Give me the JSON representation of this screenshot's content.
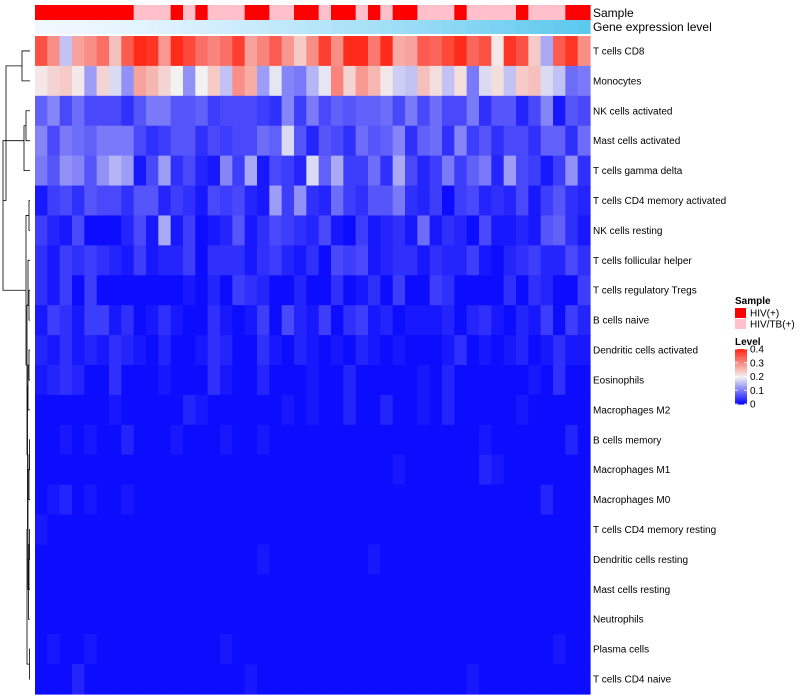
{
  "chart_data": {
    "type": "heatmap",
    "annotation_labels": [
      "Sample",
      "Gene expression level"
    ],
    "sample_groups": [
      "HIV(+)",
      "HIV(+)",
      "HIV(+)",
      "HIV(+)",
      "HIV(+)",
      "HIV(+)",
      "HIV(+)",
      "HIV(+)",
      "HIV/TB(+)",
      "HIV/TB(+)",
      "HIV/TB(+)",
      "HIV(+)",
      "HIV/TB(+)",
      "HIV(+)",
      "HIV/TB(+)",
      "HIV/TB(+)",
      "HIV/TB(+)",
      "HIV(+)",
      "HIV(+)",
      "HIV/TB(+)",
      "HIV/TB(+)",
      "HIV(+)",
      "HIV(+)",
      "HIV/TB(+)",
      "HIV(+)",
      "HIV(+)",
      "HIV/TB(+)",
      "HIV(+)",
      "HIV/TB(+)",
      "HIV(+)",
      "HIV(+)",
      "HIV/TB(+)",
      "HIV/TB(+)",
      "HIV/TB(+)",
      "HIV(+)",
      "HIV/TB(+)",
      "HIV/TB(+)",
      "HIV/TB(+)",
      "HIV/TB(+)",
      "HIV(+)",
      "HIV/TB(+)",
      "HIV/TB(+)",
      "HIV/TB(+)",
      "HIV(+)",
      "HIV(+)"
    ],
    "rows": [
      {
        "name": "T cells CD8",
        "values": [
          0.36,
          0.3,
          0.16,
          0.28,
          0.3,
          0.33,
          0.25,
          0.35,
          0.4,
          0.39,
          0.29,
          0.41,
          0.37,
          0.33,
          0.31,
          0.33,
          0.38,
          0.28,
          0.31,
          0.35,
          0.29,
          0.24,
          0.3,
          0.38,
          0.3,
          0.42,
          0.4,
          0.32,
          0.41,
          0.27,
          0.28,
          0.35,
          0.34,
          0.37,
          0.42,
          0.34,
          0.36,
          0.21,
          0.39,
          0.36,
          0.24,
          0.14,
          0.35,
          0.39,
          0.3
        ]
      },
      {
        "name": "Monocytes",
        "values": [
          0.21,
          0.23,
          0.24,
          0.21,
          0.13,
          0.23,
          0.18,
          0.12,
          0.28,
          0.26,
          0.23,
          0.2,
          0.12,
          0.2,
          0.24,
          0.16,
          0.3,
          0.27,
          0.13,
          0.19,
          0.11,
          0.1,
          0.15,
          0.19,
          0.31,
          0.23,
          0.29,
          0.26,
          0.21,
          0.17,
          0.16,
          0.25,
          0.22,
          0.16,
          0.22,
          0.1,
          0.18,
          0.22,
          0.16,
          0.24,
          0.25,
          0.18,
          0.16,
          0.09,
          0.1
        ]
      },
      {
        "name": "NK cells activated",
        "values": [
          0.08,
          0.11,
          0.06,
          0.09,
          0.06,
          0.06,
          0.06,
          0.04,
          0.07,
          0.1,
          0.1,
          0.07,
          0.07,
          0.08,
          0.05,
          0.06,
          0.06,
          0.06,
          0.05,
          0.04,
          0.11,
          0.05,
          0.1,
          0.06,
          0.08,
          0.07,
          0.08,
          0.08,
          0.09,
          0.06,
          0.1,
          0.06,
          0.09,
          0.06,
          0.06,
          0.1,
          0.04,
          0.07,
          0.07,
          0.03,
          0.06,
          0.11,
          0.02,
          0.07,
          0.06
        ]
      },
      {
        "name": "Mast cells activated",
        "values": [
          0.11,
          0.06,
          0.1,
          0.09,
          0.08,
          0.1,
          0.1,
          0.1,
          0.06,
          0.04,
          0.05,
          0.07,
          0.07,
          0.04,
          0.06,
          0.05,
          0.06,
          0.06,
          0.09,
          0.08,
          0.18,
          0.07,
          0.03,
          0.07,
          0.06,
          0.04,
          0.09,
          0.07,
          0.08,
          0.11,
          0.04,
          0.08,
          0.09,
          0.04,
          0.11,
          0.05,
          0.07,
          0.04,
          0.06,
          0.06,
          0.04,
          0.08,
          0.08,
          0.04,
          0.09
        ]
      },
      {
        "name": "T cells gamma delta",
        "values": [
          0.1,
          0.07,
          0.12,
          0.11,
          0.07,
          0.12,
          0.15,
          0.13,
          0.02,
          0.06,
          0.13,
          0.04,
          0.06,
          0.03,
          0.02,
          0.11,
          0.05,
          0.14,
          0.02,
          0.06,
          0.05,
          0.03,
          0.18,
          0.08,
          0.14,
          0.05,
          0.05,
          0.09,
          0.04,
          0.14,
          0.06,
          0.03,
          0.05,
          0.1,
          0.05,
          0.08,
          0.1,
          0.03,
          0.13,
          0.06,
          0.05,
          0.02,
          0.05,
          0.12,
          0.04
        ]
      },
      {
        "name": "T cells CD4 memory activated",
        "values": [
          0.02,
          0.05,
          0.06,
          0.04,
          0.07,
          0.06,
          0.06,
          0.04,
          0.07,
          0.07,
          0.03,
          0.05,
          0.04,
          0.02,
          0.06,
          0.05,
          0.06,
          0.03,
          0.02,
          0.13,
          0.05,
          0.12,
          0.04,
          0.03,
          0.09,
          0.05,
          0.04,
          0.07,
          0.07,
          0.1,
          0.04,
          0.03,
          0.05,
          0.01,
          0.05,
          0.06,
          0.03,
          0.04,
          0.03,
          0.06,
          0.02,
          0.05,
          0.07,
          0.04,
          0.03
        ]
      },
      {
        "name": "NK cells resting",
        "values": [
          0.05,
          0.03,
          0.02,
          0.06,
          0.01,
          0.01,
          0.01,
          0.03,
          0.06,
          0.02,
          0.14,
          0.02,
          0.05,
          0.01,
          0.02,
          0.03,
          0.07,
          0.02,
          0.04,
          0.06,
          0.05,
          0.04,
          0.03,
          0.06,
          0.02,
          0.01,
          0.05,
          0.02,
          0.03,
          0.04,
          0.02,
          0.09,
          0.02,
          0.04,
          0.03,
          0.01,
          0.06,
          0.02,
          0.02,
          0.03,
          0.02,
          0.07,
          0.08,
          0.04,
          0.02
        ]
      },
      {
        "name": "T cells follicular helper",
        "values": [
          0.04,
          0.02,
          0.05,
          0.04,
          0.05,
          0.04,
          0.03,
          0.02,
          0.05,
          0.02,
          0.03,
          0.03,
          0.05,
          0.01,
          0.04,
          0.04,
          0.04,
          0.02,
          0.04,
          0.05,
          0.03,
          0.02,
          0.04,
          0.01,
          0.06,
          0.05,
          0.06,
          0.02,
          0.03,
          0.04,
          0.04,
          0.02,
          0.04,
          0.03,
          0.03,
          0.05,
          0.02,
          0.01,
          0.03,
          0.04,
          0.05,
          0.03,
          0.03,
          0.06,
          0.04
        ]
      },
      {
        "name": "T cells regulatory  Tregs",
        "values": [
          0.04,
          0.02,
          0.05,
          0.01,
          0.05,
          0.01,
          0.01,
          0.01,
          0.01,
          0.01,
          0.01,
          0.01,
          0.02,
          0.01,
          0.03,
          0.01,
          0.05,
          0.04,
          0.03,
          0.01,
          0.01,
          0.03,
          0.01,
          0.01,
          0.04,
          0.01,
          0.02,
          0.04,
          0.01,
          0.05,
          0.01,
          0.01,
          0.05,
          0.04,
          0.01,
          0.01,
          0.01,
          0.01,
          0.04,
          0.01,
          0.04,
          0.03,
          0.01,
          0.01,
          0.05
        ]
      },
      {
        "name": "B cells naive",
        "values": [
          0.02,
          0.05,
          0.04,
          0.02,
          0.05,
          0.05,
          0.02,
          0.04,
          0.01,
          0.02,
          0.04,
          0.02,
          0.01,
          0.01,
          0.04,
          0.02,
          0.01,
          0.02,
          0.05,
          0.01,
          0.06,
          0.03,
          0.02,
          0.05,
          0.01,
          0.04,
          0.05,
          0.02,
          0.03,
          0.01,
          0.02,
          0.02,
          0.02,
          0.03,
          0.01,
          0.03,
          0.04,
          0.02,
          0.01,
          0.03,
          0.02,
          0.05,
          0.01,
          0.05,
          0.03
        ]
      },
      {
        "name": "Dendritic cells activated",
        "values": [
          0.03,
          0.02,
          0.04,
          0.02,
          0.03,
          0.02,
          0.04,
          0.03,
          0.02,
          0.01,
          0.03,
          0.01,
          0.01,
          0.02,
          0.04,
          0.03,
          0.01,
          0.01,
          0.04,
          0.02,
          0.01,
          0.03,
          0.02,
          0.01,
          0.02,
          0.01,
          0.03,
          0.02,
          0.01,
          0.02,
          0.01,
          0.01,
          0.01,
          0.02,
          0.04,
          0.01,
          0.02,
          0.01,
          0.02,
          0.03,
          0.01,
          0.02,
          0.04,
          0.02,
          0.02
        ]
      },
      {
        "name": "Eosinophils",
        "values": [
          0.02,
          0.03,
          0.04,
          0.03,
          0.01,
          0.01,
          0.04,
          0.01,
          0.01,
          0.01,
          0.02,
          0.01,
          0.01,
          0.01,
          0.04,
          0.02,
          0.01,
          0.01,
          0.03,
          0.01,
          0.01,
          0.01,
          0.02,
          0.01,
          0.01,
          0.03,
          0.01,
          0.01,
          0.01,
          0.01,
          0.01,
          0.02,
          0.01,
          0.03,
          0.01,
          0.01,
          0.01,
          0.01,
          0.01,
          0.01,
          0.02,
          0.01,
          0.04,
          0.01,
          0.01
        ]
      },
      {
        "name": "Macrophages M2",
        "values": [
          0.01,
          0.01,
          0.01,
          0.01,
          0.01,
          0.01,
          0.02,
          0.01,
          0.01,
          0.01,
          0.01,
          0.01,
          0.03,
          0.02,
          0.01,
          0.01,
          0.01,
          0.01,
          0.01,
          0.01,
          0.02,
          0.01,
          0.02,
          0.01,
          0.01,
          0.03,
          0.01,
          0.01,
          0.03,
          0.01,
          0.01,
          0.02,
          0.01,
          0.03,
          0.01,
          0.01,
          0.01,
          0.01,
          0.01,
          0.02,
          0.01,
          0.01,
          0.01,
          0.01,
          0.01
        ]
      },
      {
        "name": "B cells memory",
        "values": [
          0.01,
          0.01,
          0.02,
          0.01,
          0.02,
          0.01,
          0.01,
          0.03,
          0.01,
          0.01,
          0.01,
          0.02,
          0.01,
          0.01,
          0.01,
          0.02,
          0.01,
          0.01,
          0.02,
          0.01,
          0.01,
          0.01,
          0.01,
          0.01,
          0.01,
          0.01,
          0.01,
          0.01,
          0.01,
          0.01,
          0.01,
          0.01,
          0.01,
          0.01,
          0.01,
          0.01,
          0.02,
          0.01,
          0.01,
          0.01,
          0.01,
          0.01,
          0.01,
          0.03,
          0.01
        ]
      },
      {
        "name": "Macrophages M1",
        "values": [
          0.01,
          0.01,
          0.01,
          0.01,
          0.01,
          0.01,
          0.01,
          0.01,
          0.01,
          0.01,
          0.01,
          0.01,
          0.01,
          0.01,
          0.01,
          0.01,
          0.01,
          0.01,
          0.01,
          0.01,
          0.01,
          0.01,
          0.01,
          0.01,
          0.01,
          0.01,
          0.01,
          0.01,
          0.01,
          0.02,
          0.01,
          0.01,
          0.01,
          0.01,
          0.01,
          0.01,
          0.03,
          0.02,
          0.01,
          0.01,
          0.01,
          0.01,
          0.01,
          0.01,
          0.01
        ]
      },
      {
        "name": "Macrophages M0",
        "values": [
          0.01,
          0.02,
          0.03,
          0.01,
          0.02,
          0.01,
          0.01,
          0.02,
          0.01,
          0.01,
          0.01,
          0.01,
          0.01,
          0.01,
          0.01,
          0.01,
          0.01,
          0.01,
          0.01,
          0.01,
          0.01,
          0.01,
          0.01,
          0.01,
          0.01,
          0.01,
          0.01,
          0.01,
          0.01,
          0.01,
          0.01,
          0.01,
          0.01,
          0.01,
          0.01,
          0.01,
          0.01,
          0.01,
          0.01,
          0.01,
          0.01,
          0.03,
          0.01,
          0.01,
          0.01
        ]
      },
      {
        "name": "T cells CD4 memory resting",
        "values": [
          0.02,
          0.01,
          0.01,
          0.01,
          0.01,
          0.01,
          0.01,
          0.01,
          0.01,
          0.01,
          0.01,
          0.01,
          0.01,
          0.01,
          0.01,
          0.01,
          0.01,
          0.01,
          0.01,
          0.01,
          0.01,
          0.01,
          0.01,
          0.01,
          0.01,
          0.01,
          0.01,
          0.01,
          0.01,
          0.01,
          0.01,
          0.01,
          0.01,
          0.01,
          0.01,
          0.01,
          0.01,
          0.01,
          0.01,
          0.01,
          0.01,
          0.01,
          0.01,
          0.01,
          0.01
        ]
      },
      {
        "name": "Dendritic cells resting",
        "values": [
          0.01,
          0.01,
          0.01,
          0.01,
          0.01,
          0.01,
          0.01,
          0.01,
          0.01,
          0.01,
          0.01,
          0.01,
          0.01,
          0.01,
          0.01,
          0.01,
          0.01,
          0.01,
          0.02,
          0.01,
          0.01,
          0.01,
          0.01,
          0.01,
          0.01,
          0.01,
          0.01,
          0.02,
          0.01,
          0.01,
          0.01,
          0.01,
          0.01,
          0.01,
          0.01,
          0.01,
          0.01,
          0.01,
          0.01,
          0.01,
          0.01,
          0.01,
          0.01,
          0.01,
          0.01
        ]
      },
      {
        "name": "Mast cells resting",
        "values": [
          0.01,
          0.01,
          0.01,
          0.01,
          0.01,
          0.01,
          0.01,
          0.01,
          0.01,
          0.01,
          0.01,
          0.01,
          0.01,
          0.01,
          0.01,
          0.01,
          0.01,
          0.01,
          0.01,
          0.01,
          0.01,
          0.01,
          0.01,
          0.01,
          0.01,
          0.01,
          0.01,
          0.01,
          0.01,
          0.01,
          0.01,
          0.01,
          0.01,
          0.01,
          0.01,
          0.01,
          0.01,
          0.01,
          0.01,
          0.01,
          0.01,
          0.01,
          0.01,
          0.01,
          0.01
        ]
      },
      {
        "name": "Neutrophils",
        "values": [
          0.01,
          0.01,
          0.01,
          0.01,
          0.01,
          0.01,
          0.01,
          0.01,
          0.01,
          0.01,
          0.01,
          0.01,
          0.01,
          0.01,
          0.01,
          0.01,
          0.01,
          0.01,
          0.01,
          0.01,
          0.01,
          0.01,
          0.01,
          0.01,
          0.01,
          0.01,
          0.01,
          0.01,
          0.01,
          0.01,
          0.01,
          0.01,
          0.01,
          0.01,
          0.01,
          0.01,
          0.01,
          0.01,
          0.01,
          0.01,
          0.01,
          0.01,
          0.01,
          0.01,
          0.01
        ]
      },
      {
        "name": "Plasma cells",
        "values": [
          0.01,
          0.02,
          0.01,
          0.01,
          0.02,
          0.01,
          0.01,
          0.01,
          0.01,
          0.01,
          0.01,
          0.01,
          0.01,
          0.01,
          0.01,
          0.02,
          0.01,
          0.01,
          0.01,
          0.01,
          0.01,
          0.01,
          0.01,
          0.01,
          0.01,
          0.01,
          0.01,
          0.01,
          0.01,
          0.01,
          0.01,
          0.01,
          0.01,
          0.01,
          0.01,
          0.01,
          0.01,
          0.01,
          0.01,
          0.01,
          0.01,
          0.01,
          0.02,
          0.01,
          0.01
        ]
      },
      {
        "name": "T cells CD4 naive",
        "values": [
          0.01,
          0.01,
          0.01,
          0.03,
          0.01,
          0.01,
          0.01,
          0.01,
          0.01,
          0.01,
          0.01,
          0.01,
          0.01,
          0.01,
          0.01,
          0.01,
          0.01,
          0.02,
          0.01,
          0.01,
          0.01,
          0.01,
          0.01,
          0.01,
          0.01,
          0.01,
          0.01,
          0.01,
          0.01,
          0.01,
          0.01,
          0.01,
          0.01,
          0.01,
          0.01,
          0.02,
          0.01,
          0.01,
          0.01,
          0.01,
          0.01,
          0.01,
          0.01,
          0.01,
          0.01
        ]
      }
    ],
    "legend": {
      "sample": {
        "title": "Sample",
        "entries": [
          {
            "label": "HIV(+)",
            "color": "#ff0000"
          },
          {
            "label": "HIV/TB(+)",
            "color": "#ffc0cb"
          }
        ]
      },
      "level": {
        "title": "Level",
        "range": [
          0,
          0.4
        ],
        "ticks": [
          {
            "label": "0.4",
            "value": 0.4
          },
          {
            "label": "0.3",
            "value": 0.3
          },
          {
            "label": "0.2",
            "value": 0.2
          },
          {
            "label": "0.1",
            "value": 0.1
          },
          {
            "label": "0",
            "value": 0
          }
        ]
      }
    },
    "colors": {
      "low": "#0000ff",
      "mid": "#f2f2f2",
      "high": "#ff2a1a",
      "expression_bar_start": "#f0f8ff",
      "expression_bar_end": "#5bc8ee",
      "dendrogram": "#000000"
    }
  }
}
